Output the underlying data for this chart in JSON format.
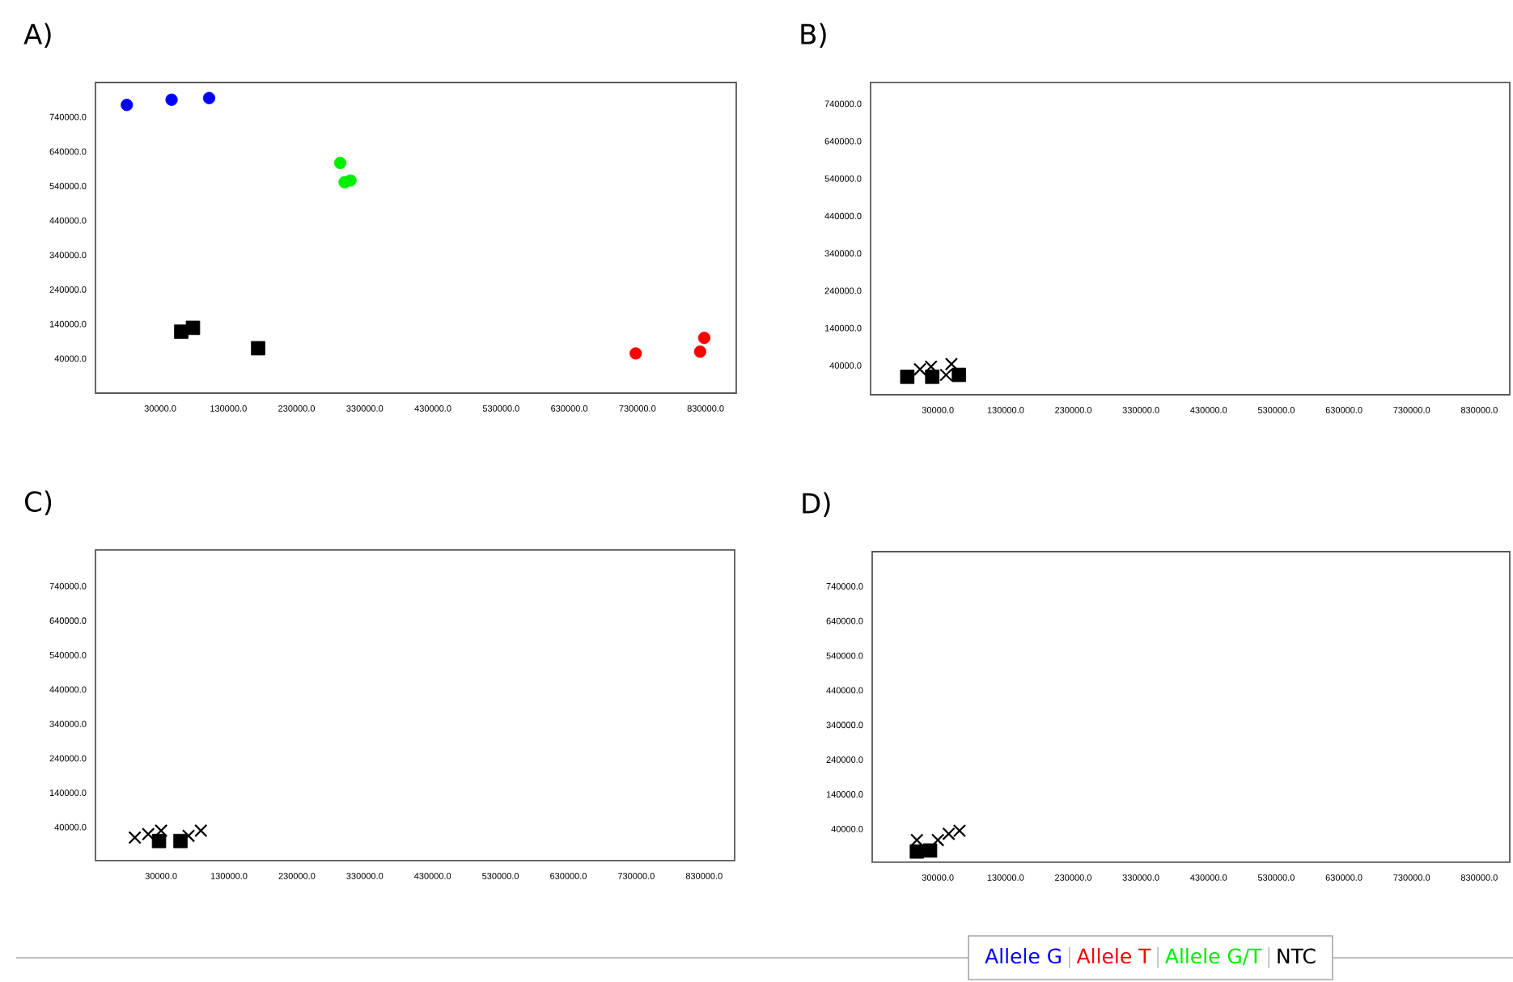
{
  "chart_data": [
    {
      "type": "scatter",
      "title": "A)",
      "legend": "bottom",
      "xlim": [
        -65000,
        875000
      ],
      "ylim": [
        -60000,
        840000
      ],
      "xticks": [
        {
          "value": 30000,
          "label": "30000.0"
        },
        {
          "value": 130000,
          "label": "130000.0"
        },
        {
          "value": 230000,
          "label": "230000.0"
        },
        {
          "value": 330000,
          "label": "330000.0"
        },
        {
          "value": 430000,
          "label": "430000.0"
        },
        {
          "value": 530000,
          "label": "530000.0"
        },
        {
          "value": 630000,
          "label": "630000.0"
        },
        {
          "value": 730000,
          "label": "730000.0"
        },
        {
          "value": 830000,
          "label": "830000.0"
        }
      ],
      "yticks": [
        {
          "value": 40000,
          "label": "40000.0"
        },
        {
          "value": 140000,
          "label": "140000.0"
        },
        {
          "value": 240000,
          "label": "240000.0"
        },
        {
          "value": 340000,
          "label": "340000.0"
        },
        {
          "value": 440000,
          "label": "440000.0"
        },
        {
          "value": 540000,
          "label": "540000.0"
        },
        {
          "value": 640000,
          "label": "640000.0"
        },
        {
          "value": 740000,
          "label": "740000.0"
        }
      ],
      "series": [
        {
          "name": "Allele G",
          "color": "#0000ff",
          "marker": "circle",
          "x": [
            -19000,
            46600,
            101700
          ],
          "values": [
            775000,
            790000,
            795000
          ]
        },
        {
          "name": "Allele T",
          "color": "#ff0000",
          "marker": "circle",
          "x": [
            727500,
            822000,
            828000
          ],
          "values": [
            55000,
            60000,
            100000
          ]
        },
        {
          "name": "Allele G/T",
          "color": "#00ee00",
          "marker": "circle",
          "x": [
            294000,
            300500,
            309000
          ],
          "values": [
            607000,
            551000,
            556000
          ]
        },
        {
          "name": "NTC",
          "color": "#000000",
          "marker": "square",
          "x": [
            60800,
            78000,
            173600
          ],
          "values": [
            118000,
            129000,
            70000
          ]
        }
      ]
    },
    {
      "type": "scatter",
      "title": "B)",
      "xlim": [
        -69500,
        875000
      ],
      "ylim": [
        -38000,
        797000
      ],
      "xticks": [
        {
          "value": 30000,
          "label": "30000.0"
        },
        {
          "value": 130000,
          "label": "130000.0"
        },
        {
          "value": 230000,
          "label": "230000.0"
        },
        {
          "value": 330000,
          "label": "330000.0"
        },
        {
          "value": 430000,
          "label": "430000.0"
        },
        {
          "value": 530000,
          "label": "530000.0"
        },
        {
          "value": 630000,
          "label": "630000.0"
        },
        {
          "value": 730000,
          "label": "730000.0"
        },
        {
          "value": 830000,
          "label": "830000.0"
        }
      ],
      "yticks": [
        {
          "value": 40000,
          "label": "40000.0"
        },
        {
          "value": 140000,
          "label": "140000.0"
        },
        {
          "value": 240000,
          "label": "240000.0"
        },
        {
          "value": 340000,
          "label": "340000.0"
        },
        {
          "value": 440000,
          "label": "440000.0"
        },
        {
          "value": 540000,
          "label": "540000.0"
        },
        {
          "value": 640000,
          "label": "640000.0"
        },
        {
          "value": 740000,
          "label": "740000.0"
        }
      ],
      "series": [
        {
          "color": "#000000",
          "marker": "square",
          "x": [
            -15300,
            21600,
            61000
          ],
          "values": [
            10000,
            10000,
            15000
          ]
        },
        {
          "color": "#000000",
          "marker": "cross",
          "x": [
            3500,
            19800,
            42000,
            50000
          ],
          "values": [
            30000,
            37000,
            15000,
            44000
          ]
        }
      ]
    },
    {
      "type": "scatter",
      "title": "C)",
      "xlim": [
        -66700,
        875000
      ],
      "ylim": [
        -57000,
        845000
      ],
      "xticks": [
        {
          "value": 30000,
          "label": "30000.0"
        },
        {
          "value": 130000,
          "label": "130000.0"
        },
        {
          "value": 230000,
          "label": "230000.0"
        },
        {
          "value": 330000,
          "label": "330000.0"
        },
        {
          "value": 430000,
          "label": "430000.0"
        },
        {
          "value": 530000,
          "label": "530000.0"
        },
        {
          "value": 630000,
          "label": "630000.0"
        },
        {
          "value": 730000,
          "label": "730000.0"
        },
        {
          "value": 830000,
          "label": "830000.0"
        }
      ],
      "yticks": [
        {
          "value": 40000,
          "label": "40000.0"
        },
        {
          "value": 140000,
          "label": "140000.0"
        },
        {
          "value": 240000,
          "label": "240000.0"
        },
        {
          "value": 340000,
          "label": "340000.0"
        },
        {
          "value": 440000,
          "label": "440000.0"
        },
        {
          "value": 540000,
          "label": "540000.0"
        },
        {
          "value": 640000,
          "label": "640000.0"
        },
        {
          "value": 740000,
          "label": "740000.0"
        }
      ],
      "series": [
        {
          "color": "#000000",
          "marker": "square",
          "x": [
            26900,
            58500
          ],
          "values": [
            0,
            0
          ]
        },
        {
          "color": "#000000",
          "marker": "cross",
          "x": [
            -8700,
            11000,
            30000,
            70400,
            88600
          ],
          "values": [
            10000,
            20000,
            30000,
            15000,
            30000
          ]
        }
      ]
    },
    {
      "type": "scatter",
      "title": "D)",
      "xlim": [
        -67000,
        875000
      ],
      "ylim": [
        -56000,
        840000
      ],
      "xticks": [
        {
          "value": 30000,
          "label": "30000.0"
        },
        {
          "value": 130000,
          "label": "130000.0"
        },
        {
          "value": 230000,
          "label": "230000.0"
        },
        {
          "value": 330000,
          "label": "330000.0"
        },
        {
          "value": 430000,
          "label": "430000.0"
        },
        {
          "value": 530000,
          "label": "530000.0"
        },
        {
          "value": 630000,
          "label": "630000.0"
        },
        {
          "value": 730000,
          "label": "730000.0"
        },
        {
          "value": 830000,
          "label": "830000.0"
        }
      ],
      "yticks": [
        {
          "value": 40000,
          "label": "40000.0"
        },
        {
          "value": 140000,
          "label": "140000.0"
        },
        {
          "value": 240000,
          "label": "240000.0"
        },
        {
          "value": 340000,
          "label": "340000.0"
        },
        {
          "value": 440000,
          "label": "440000.0"
        },
        {
          "value": 540000,
          "label": "540000.0"
        },
        {
          "value": 640000,
          "label": "640000.0"
        },
        {
          "value": 740000,
          "label": "740000.0"
        }
      ],
      "series": [
        {
          "color": "#000000",
          "marker": "square",
          "x": [
            -1000,
            18500
          ],
          "values": [
            -25000,
            -22000
          ]
        },
        {
          "color": "#000000",
          "marker": "cross",
          "x": [
            -1000,
            30000,
            46000,
            62000
          ],
          "values": [
            8000,
            8000,
            26000,
            35000
          ]
        }
      ]
    }
  ]
}
